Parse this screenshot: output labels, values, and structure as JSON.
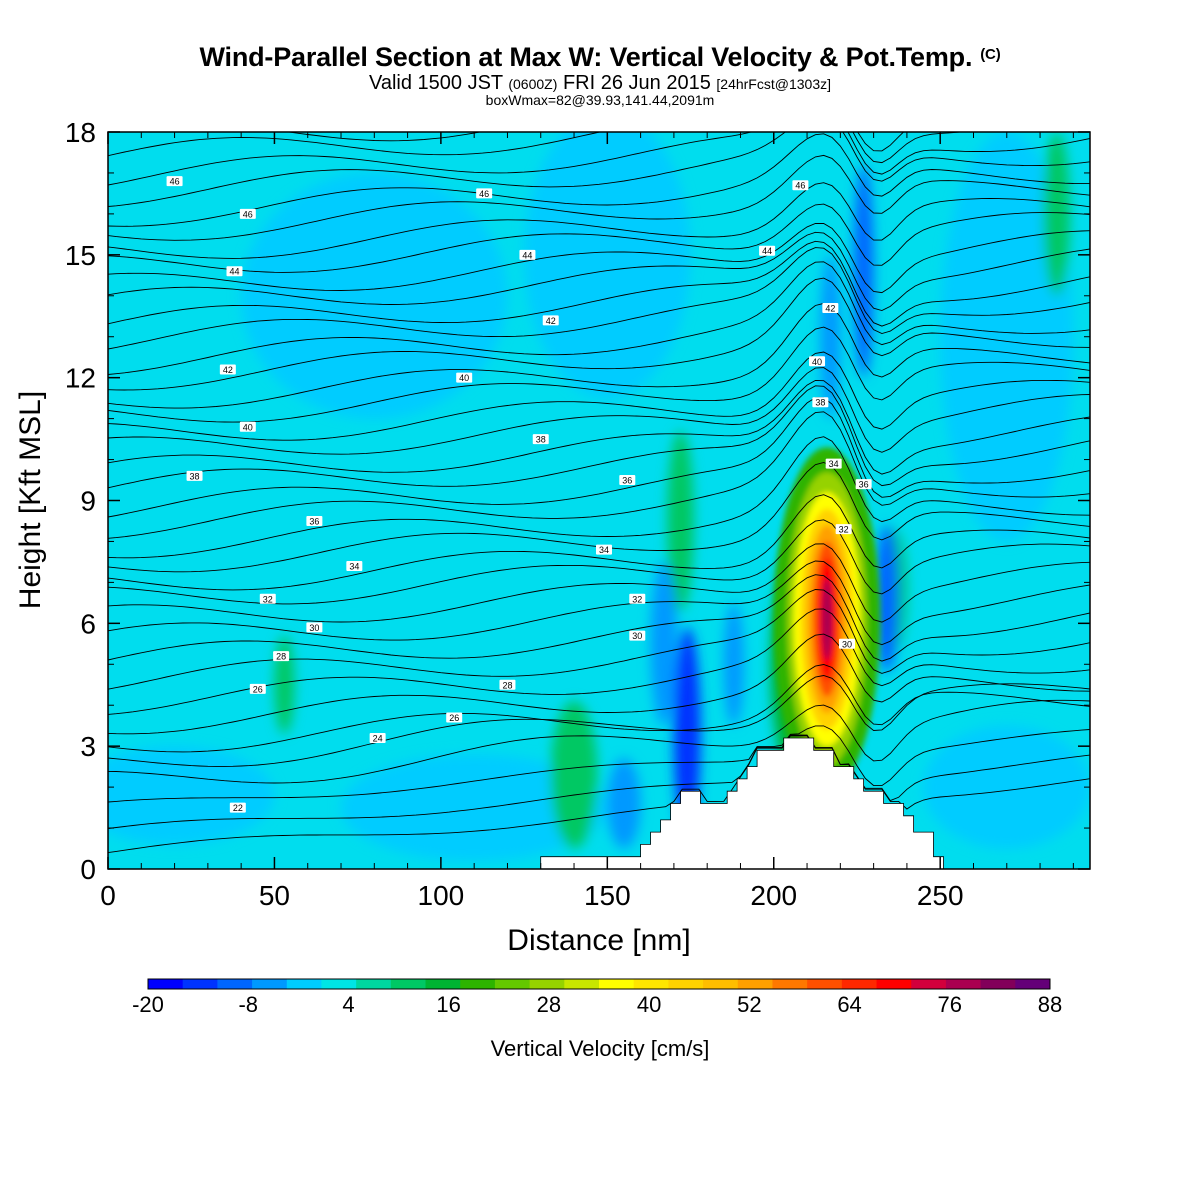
{
  "header": {
    "title": "Wind-Parallel Section at Max W: Vertical Velocity & Pot.Temp.",
    "copyright": "(C)",
    "valid_prefix": "Valid 1500 JST",
    "valid_zulu": "(0600Z)",
    "valid_date": "FRI 26 Jun 2015",
    "forecast": "[24hrFcst@1303z]",
    "box_wmax": "boxWmax=82@39.93,141.44,2091m"
  },
  "chart_data": {
    "type": "heatmap",
    "title": "Wind-Parallel Section at Max W: Vertical Velocity & Pot.Temp.",
    "xlabel": "Distance [nm]",
    "ylabel": "Height [Kft MSL]",
    "xlim": [
      0,
      295
    ],
    "ylim": [
      0,
      18
    ],
    "xticks": [
      0,
      50,
      100,
      150,
      200,
      250
    ],
    "yticks": [
      0,
      3,
      6,
      9,
      12,
      15,
      18
    ],
    "colorbar": {
      "label": "Vertical Velocity [cm/s]",
      "ticks": [
        -20,
        -8,
        4,
        16,
        28,
        40,
        52,
        64,
        76,
        88
      ],
      "colors": [
        "#0000ff",
        "#0033ff",
        "#0066ff",
        "#0099ff",
        "#00ccff",
        "#00e5e5",
        "#00d6a0",
        "#00c864",
        "#00b432",
        "#2db400",
        "#64c800",
        "#96d200",
        "#c8e600",
        "#ffff00",
        "#ffe600",
        "#ffd200",
        "#ffbe00",
        "#ffa000",
        "#ff7800",
        "#ff5000",
        "#ff2800",
        "#ff0000",
        "#d2003c",
        "#aa0050",
        "#82005a",
        "#640078"
      ]
    },
    "terrain": [
      [
        0,
        0
      ],
      [
        130,
        0
      ],
      [
        130,
        0.3
      ],
      [
        160,
        0.3
      ],
      [
        160,
        0.6
      ],
      [
        163,
        0.6
      ],
      [
        163,
        0.9
      ],
      [
        166,
        0.9
      ],
      [
        166,
        1.2
      ],
      [
        169,
        1.2
      ],
      [
        169,
        1.6
      ],
      [
        172,
        1.6
      ],
      [
        172,
        1.9
      ],
      [
        178,
        1.9
      ],
      [
        178,
        1.6
      ],
      [
        186,
        1.6
      ],
      [
        186,
        1.9
      ],
      [
        189,
        1.9
      ],
      [
        189,
        2.2
      ],
      [
        192,
        2.2
      ],
      [
        192,
        2.5
      ],
      [
        195,
        2.5
      ],
      [
        195,
        2.9
      ],
      [
        203,
        2.9
      ],
      [
        203,
        3.2
      ],
      [
        212,
        3.2
      ],
      [
        212,
        2.9
      ],
      [
        218,
        2.9
      ],
      [
        218,
        2.5
      ],
      [
        224,
        2.5
      ],
      [
        224,
        2.2
      ],
      [
        227,
        2.2
      ],
      [
        227,
        1.9
      ],
      [
        233,
        1.9
      ],
      [
        233,
        1.6
      ],
      [
        239,
        1.6
      ],
      [
        239,
        1.3
      ],
      [
        242,
        1.3
      ],
      [
        242,
        0.9
      ],
      [
        248,
        0.9
      ],
      [
        248,
        0.3
      ],
      [
        251,
        0.3
      ],
      [
        251,
        0
      ],
      [
        295,
        0
      ]
    ],
    "isentropes": {
      "unit": "K",
      "labels": [
        {
          "x": 20,
          "y": 16.8,
          "text": "46"
        },
        {
          "x": 113,
          "y": 16.5,
          "text": "46"
        },
        {
          "x": 208,
          "y": 16.7,
          "text": "46"
        },
        {
          "x": 42,
          "y": 16.0,
          "text": "46"
        },
        {
          "x": 38,
          "y": 14.6,
          "text": "44"
        },
        {
          "x": 126,
          "y": 15.0,
          "text": "44"
        },
        {
          "x": 198,
          "y": 15.1,
          "text": "44"
        },
        {
          "x": 133,
          "y": 13.4,
          "text": "42"
        },
        {
          "x": 217,
          "y": 13.7,
          "text": "42"
        },
        {
          "x": 36,
          "y": 12.2,
          "text": "42"
        },
        {
          "x": 107,
          "y": 12.0,
          "text": "40"
        },
        {
          "x": 213,
          "y": 12.4,
          "text": "40"
        },
        {
          "x": 42,
          "y": 10.8,
          "text": "40"
        },
        {
          "x": 130,
          "y": 10.5,
          "text": "38"
        },
        {
          "x": 214,
          "y": 11.4,
          "text": "38"
        },
        {
          "x": 26,
          "y": 9.6,
          "text": "38"
        },
        {
          "x": 156,
          "y": 9.5,
          "text": "36"
        },
        {
          "x": 62,
          "y": 8.5,
          "text": "36"
        },
        {
          "x": 218,
          "y": 9.9,
          "text": "34"
        },
        {
          "x": 227,
          "y": 9.4,
          "text": "36"
        },
        {
          "x": 149,
          "y": 7.8,
          "text": "34"
        },
        {
          "x": 74,
          "y": 7.4,
          "text": "34"
        },
        {
          "x": 221,
          "y": 8.3,
          "text": "32"
        },
        {
          "x": 48,
          "y": 6.6,
          "text": "32"
        },
        {
          "x": 159,
          "y": 6.6,
          "text": "32"
        },
        {
          "x": 62,
          "y": 5.9,
          "text": "30"
        },
        {
          "x": 159,
          "y": 5.7,
          "text": "30"
        },
        {
          "x": 222,
          "y": 5.5,
          "text": "30"
        },
        {
          "x": 52,
          "y": 5.2,
          "text": "28"
        },
        {
          "x": 120,
          "y": 4.5,
          "text": "28"
        },
        {
          "x": 45,
          "y": 4.4,
          "text": "26"
        },
        {
          "x": 104,
          "y": 3.7,
          "text": "26"
        },
        {
          "x": 81,
          "y": 3.2,
          "text": "24"
        },
        {
          "x": 39,
          "y": 1.5,
          "text": "22"
        }
      ]
    },
    "vertical_velocity_features": [
      {
        "x": 216,
        "y": 6.0,
        "value": 82,
        "label": "updraft core"
      },
      {
        "x": 174,
        "y": 3.0,
        "value": -16,
        "label": "downdraft"
      },
      {
        "x": 234,
        "y": 6.5,
        "value": -12,
        "label": "downdraft"
      },
      {
        "x": 227,
        "y": 14.5,
        "value": -10,
        "label": "downdraft"
      },
      {
        "x": 140,
        "y": 2.3,
        "value": 14,
        "label": "updraft"
      },
      {
        "x": 172,
        "y": 8.5,
        "value": 10,
        "label": "updraft"
      }
    ],
    "grid": false,
    "legend": "bottom"
  }
}
